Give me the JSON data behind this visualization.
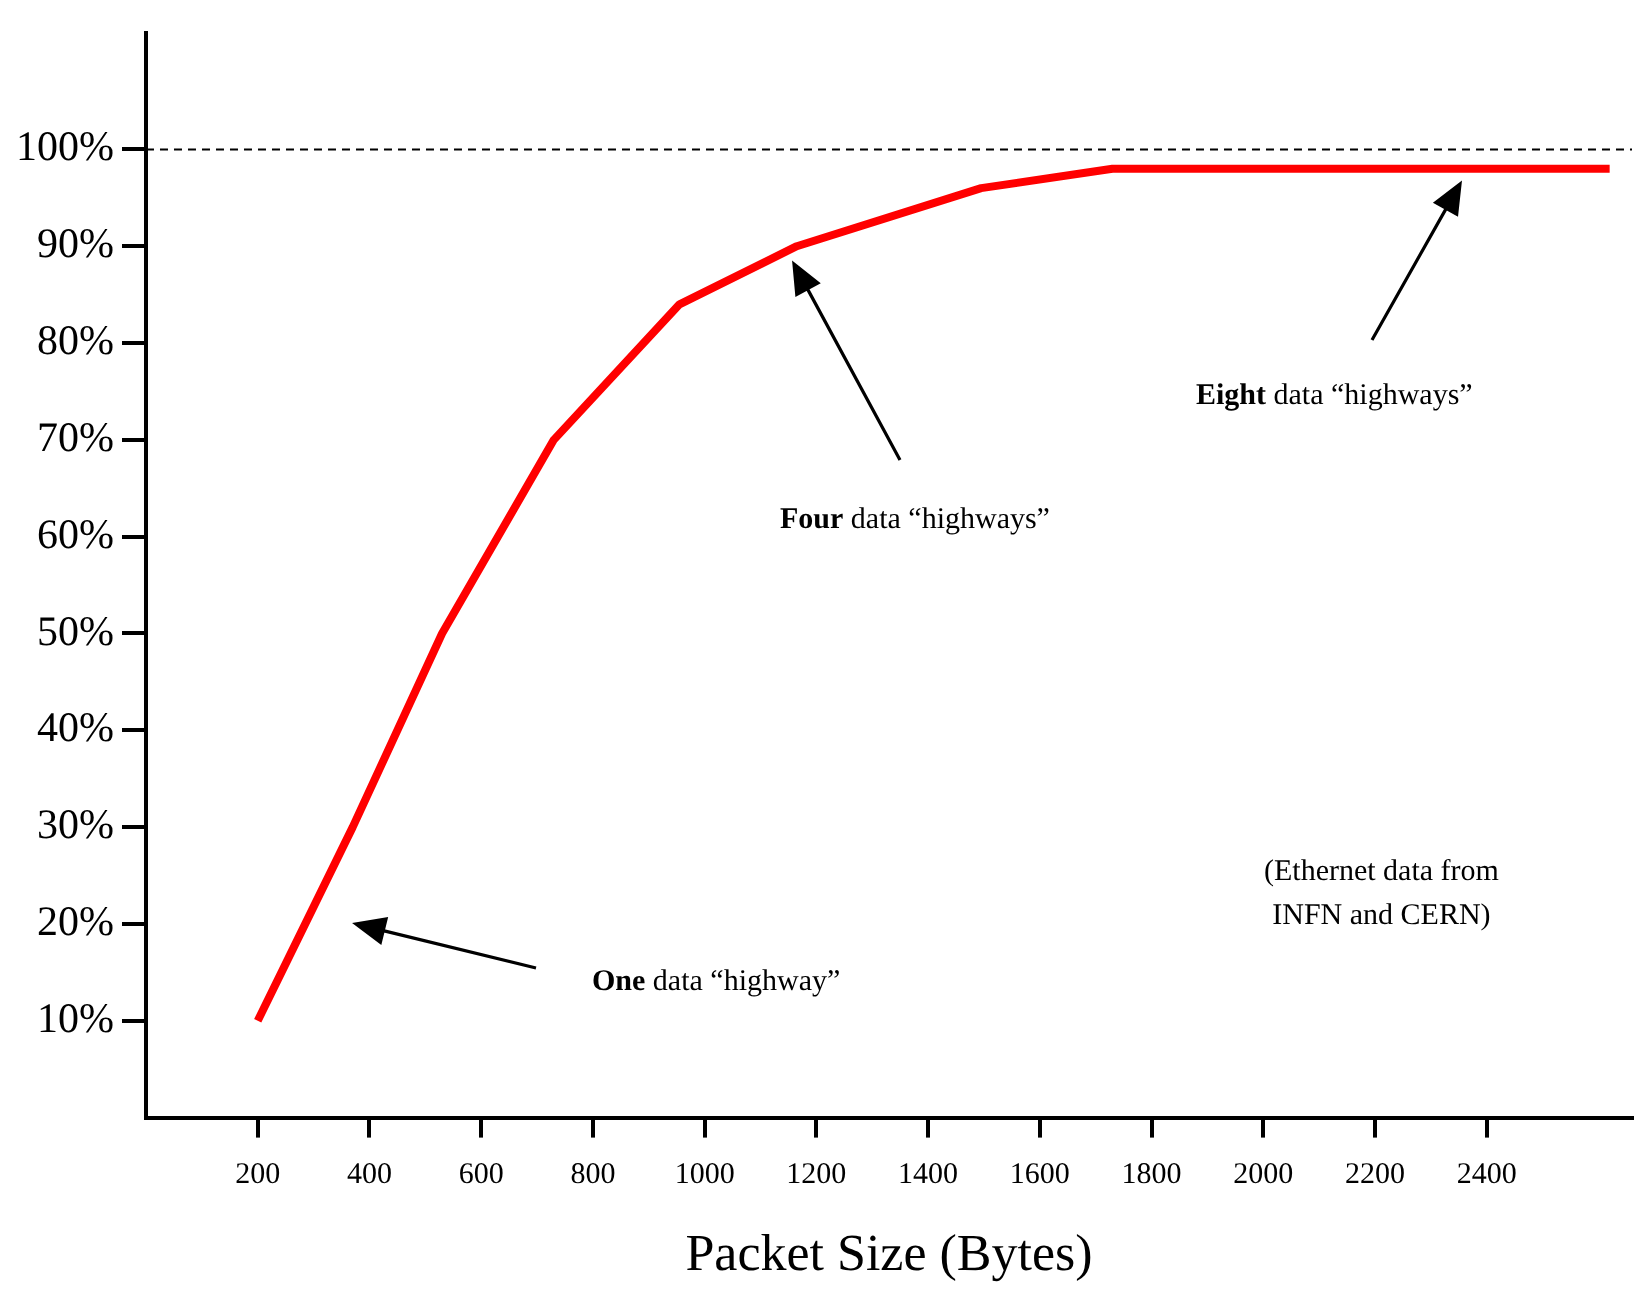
{
  "chart_data": {
    "type": "line",
    "xlabel": "Packet Size (Bytes)",
    "x": [
      200,
      370,
      530,
      730,
      955,
      1165,
      1495,
      1730,
      2620
    ],
    "series": [
      {
        "color": "#ff0000",
        "values": [
          10,
          30,
          50,
          70,
          84,
          90,
          96,
          98,
          98
        ]
      }
    ],
    "xlim": [
      0,
      2660
    ],
    "xticks": [
      200,
      400,
      600,
      800,
      1000,
      1200,
      1400,
      1600,
      1800,
      2000,
      2200,
      2400
    ],
    "ylim": [
      0,
      112
    ],
    "yticks": [
      {
        "value": 10,
        "label": "10%"
      },
      {
        "value": 20,
        "label": "20%"
      },
      {
        "value": 30,
        "label": "30%"
      },
      {
        "value": 40,
        "label": "40%"
      },
      {
        "value": 50,
        "label": "50%"
      },
      {
        "value": 60,
        "label": "60%"
      },
      {
        "value": 70,
        "label": "70%"
      },
      {
        "value": 80,
        "label": "80%"
      },
      {
        "value": 90,
        "label": "90%"
      },
      {
        "value": 100,
        "label": "100%"
      }
    ],
    "ref_lines": [
      {
        "axis": "y",
        "value": 100,
        "line_style": "dashed",
        "color": "#000000"
      }
    ],
    "annotations": [
      "One data “highway”",
      "Four data “highways”",
      "Eight data “highways”",
      "(Ethernet data from\nINFN and CERN)"
    ],
    "grid": false,
    "legend": false,
    "marker": "none",
    "line_style": "solid"
  }
}
